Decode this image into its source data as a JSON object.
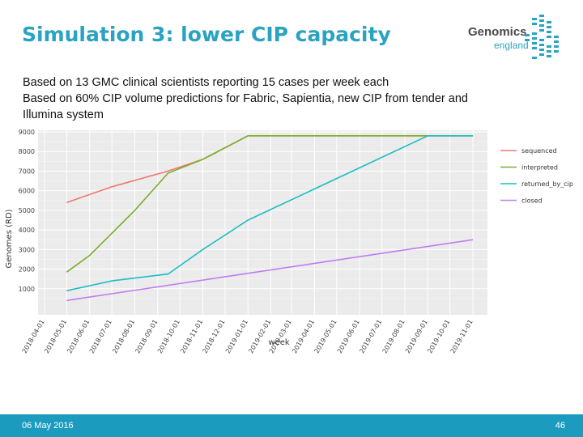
{
  "slide": {
    "title": "Simulation 3: lower CIP capacity",
    "body_lines": [
      "Based on 13 GMC clinical scientists reporting 15 cases per week each",
      "Based on 60% CIP volume predictions for Fabric, Sapientia, new CIP from tender and",
      "Illumina system"
    ],
    "logo": {
      "word": "Genomics",
      "sub": "england",
      "color": "#2aa3c2"
    },
    "footer": {
      "date": "06 May 2016",
      "page": "46",
      "color": "#1b9cbf"
    }
  },
  "chart_data": {
    "type": "line",
    "xlabel": "week",
    "ylabel": "Genomes (RD)",
    "x_ticks": [
      "2018-04-01",
      "2018-05-01",
      "2018-06-01",
      "2018-07-01",
      "2018-08-01",
      "2018-09-01",
      "2018-10-01",
      "2018-11-01",
      "2018-12-01",
      "2019-01-01",
      "2019-02-01",
      "2019-03-01",
      "2019-04-01",
      "2019-05-01",
      "2019-06-01",
      "2019-07-01",
      "2019-08-01",
      "2019-09-01",
      "2019-10-01",
      "2019-11-01"
    ],
    "y_ticks": [
      "1000",
      "2000",
      "3000",
      "4000",
      "5000",
      "6000",
      "7000",
      "8000",
      "9000"
    ],
    "ylim": [
      0,
      90000
    ],
    "grid": true,
    "legend_position": "right",
    "background": "#ebebeb",
    "series": [
      {
        "name": "sequenced",
        "color": "#f2766e",
        "points": [
          [
            "2018-05-01",
            54000
          ],
          [
            "2018-07-01",
            62000
          ],
          [
            "2018-09-15",
            70000
          ],
          [
            "2018-11-01",
            76000
          ],
          [
            "2019-01-01",
            88000
          ],
          [
            "2019-11-01",
            88000
          ]
        ]
      },
      {
        "name": "interpreted",
        "color": "#7cad2a",
        "points": [
          [
            "2018-05-01",
            18500
          ],
          [
            "2018-06-01",
            27000
          ],
          [
            "2018-08-01",
            50000
          ],
          [
            "2018-09-15",
            69000
          ],
          [
            "2018-11-01",
            76000
          ],
          [
            "2019-01-01",
            88000
          ],
          [
            "2019-11-01",
            88000
          ]
        ]
      },
      {
        "name": "returned_by_cip",
        "color": "#1dbec4",
        "points": [
          [
            "2018-05-01",
            9000
          ],
          [
            "2018-07-01",
            14000
          ],
          [
            "2018-09-15",
            17500
          ],
          [
            "2018-11-01",
            30000
          ],
          [
            "2019-01-01",
            45000
          ],
          [
            "2019-09-01",
            88000
          ],
          [
            "2019-11-01",
            88000
          ]
        ]
      },
      {
        "name": "closed",
        "color": "#c07cf0",
        "points": [
          [
            "2018-05-01",
            4000
          ],
          [
            "2019-11-01",
            35000
          ]
        ]
      }
    ]
  }
}
